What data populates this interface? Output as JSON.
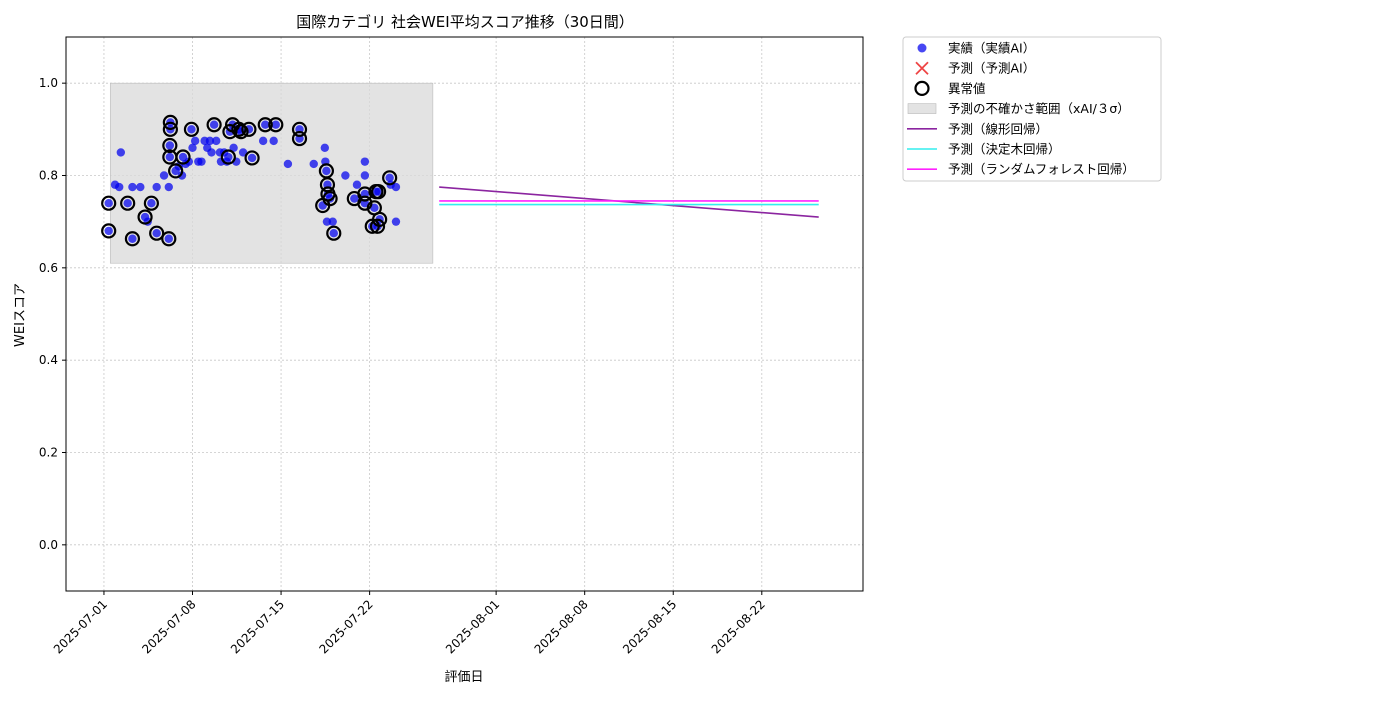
{
  "chart_data": {
    "type": "scatter",
    "title": "国際カテゴリ 社会WEI平均スコア推移（30日間）",
    "xlabel": "評価日",
    "ylabel": "WEIスコア",
    "xlim": [
      "2025-06-28",
      "2025-08-30"
    ],
    "ylim": [
      -0.1,
      1.1
    ],
    "x_ticks": [
      "2025-07-01",
      "2025-07-08",
      "2025-07-15",
      "2025-07-22",
      "2025-08-01",
      "2025-08-08",
      "2025-08-15",
      "2025-08-22"
    ],
    "y_ticks": [
      "0.0",
      "0.2",
      "0.4",
      "0.6",
      "0.8",
      "1.0"
    ],
    "grid": true,
    "legend_position": "outside-right-top",
    "colors": {
      "actual": "#0000ee",
      "predicted": "#ee4444",
      "anomaly": "#000000",
      "band": "#d9d9d9",
      "linear": "#8b25a0",
      "tree": "#33eeee",
      "forest": "#ff22ff"
    },
    "legend": [
      {
        "key": "actual",
        "label": "実績（実績AI）"
      },
      {
        "key": "predicted",
        "label": "予測（予測AI）"
      },
      {
        "key": "anomaly",
        "label": "異常値"
      },
      {
        "key": "band",
        "label": "予測の不確かさ範囲（xAI/３σ）"
      },
      {
        "key": "linear",
        "label": "予測（線形回帰）"
      },
      {
        "key": "tree",
        "label": "予測（決定木回帰）"
      },
      {
        "key": "forest",
        "label": "予測（ランダムフォレスト回帰）"
      }
    ],
    "uncertainty_band": {
      "x": [
        "2025-07-01 12:00",
        "2025-07-27 00:00"
      ],
      "y": [
        0.61,
        1.0
      ]
    },
    "actual_points": [
      [
        "2025-07-01 09:00",
        0.68
      ],
      [
        "2025-07-01 09:00",
        0.74
      ],
      [
        "2025-07-01 21:00",
        0.78
      ],
      [
        "2025-07-02 05:00",
        0.775
      ],
      [
        "2025-07-02 08:00",
        0.85
      ],
      [
        "2025-07-02 21:00",
        0.74
      ],
      [
        "2025-07-03 06:00",
        0.775
      ],
      [
        "2025-07-03 06:00",
        0.663
      ],
      [
        "2025-07-03 21:00",
        0.775
      ],
      [
        "2025-07-04 06:00",
        0.71
      ],
      [
        "2025-07-04 11:00",
        0.7
      ],
      [
        "2025-07-04 18:00",
        0.74
      ],
      [
        "2025-07-05 04:00",
        0.775
      ],
      [
        "2025-07-05 04:00",
        0.675
      ],
      [
        "2025-07-05 18:00",
        0.8
      ],
      [
        "2025-07-06 03:00",
        0.775
      ],
      [
        "2025-07-06 03:00",
        0.663
      ],
      [
        "2025-07-06 05:00",
        0.84
      ],
      [
        "2025-07-06 05:00",
        0.865
      ],
      [
        "2025-07-06 06:00",
        0.9
      ],
      [
        "2025-07-06 06:00",
        0.915
      ],
      [
        "2025-07-06 16:00",
        0.81
      ],
      [
        "2025-07-06 22:00",
        0.82
      ],
      [
        "2025-07-07 04:00",
        0.8
      ],
      [
        "2025-07-07 06:00",
        0.84
      ],
      [
        "2025-07-07 11:00",
        0.825
      ],
      [
        "2025-07-07 17:00",
        0.83
      ],
      [
        "2025-07-07 22:00",
        0.9
      ],
      [
        "2025-07-08 00:00",
        0.86
      ],
      [
        "2025-07-08 05:00",
        0.875
      ],
      [
        "2025-07-08 11:00",
        0.83
      ],
      [
        "2025-07-08 17:00",
        0.83
      ],
      [
        "2025-07-08 23:00",
        0.875
      ],
      [
        "2025-07-09 04:00",
        0.86
      ],
      [
        "2025-07-09 09:00",
        0.875
      ],
      [
        "2025-07-09 12:00",
        0.85
      ],
      [
        "2025-07-09 17:00",
        0.91
      ],
      [
        "2025-07-09 21:00",
        0.875
      ],
      [
        "2025-07-10 04:00",
        0.85
      ],
      [
        "2025-07-10 06:00",
        0.83
      ],
      [
        "2025-07-10 12:00",
        0.85
      ],
      [
        "2025-07-10 17:00",
        0.83
      ],
      [
        "2025-07-10 20:00",
        0.84
      ],
      [
        "2025-07-10 23:00",
        0.895
      ],
      [
        "2025-07-11 04:00",
        0.91
      ],
      [
        "2025-07-11 06:00",
        0.86
      ],
      [
        "2025-07-11 11:00",
        0.83
      ],
      [
        "2025-07-11 16:00",
        0.9
      ],
      [
        "2025-07-11 20:00",
        0.895
      ],
      [
        "2025-07-12 00:00",
        0.85
      ],
      [
        "2025-07-12 11:00",
        0.9
      ],
      [
        "2025-07-12 17:00",
        0.838
      ],
      [
        "2025-07-13 14:00",
        0.875
      ],
      [
        "2025-07-13 18:00",
        0.91
      ],
      [
        "2025-07-14 10:00",
        0.875
      ],
      [
        "2025-07-14 14:00",
        0.91
      ],
      [
        "2025-07-15 13:00",
        0.825
      ],
      [
        "2025-07-16 11:00",
        0.9
      ],
      [
        "2025-07-16 11:00",
        0.88
      ],
      [
        "2025-07-17 14:00",
        0.825
      ],
      [
        "2025-07-18 07:00",
        0.735
      ],
      [
        "2025-07-18 11:00",
        0.86
      ],
      [
        "2025-07-18 12:00",
        0.83
      ],
      [
        "2025-07-18 14:00",
        0.81
      ],
      [
        "2025-07-18 16:00",
        0.78
      ],
      [
        "2025-07-18 17:00",
        0.76
      ],
      [
        "2025-07-18 15:00",
        0.7
      ],
      [
        "2025-07-18 21:00",
        0.75
      ],
      [
        "2025-07-19 02:00",
        0.7
      ],
      [
        "2025-07-19 04:00",
        0.675
      ],
      [
        "2025-07-20 02:00",
        0.8
      ],
      [
        "2025-07-20 19:00",
        0.75
      ],
      [
        "2025-07-21 00:00",
        0.78
      ],
      [
        "2025-07-21 15:00",
        0.83
      ],
      [
        "2025-07-21 15:00",
        0.8
      ],
      [
        "2025-07-21 15:00",
        0.76
      ],
      [
        "2025-07-21 15:00",
        0.74
      ],
      [
        "2025-07-22 05:00",
        0.69
      ],
      [
        "2025-07-22 09:00",
        0.73
      ],
      [
        "2025-07-22 12:00",
        0.765
      ],
      [
        "2025-07-22 15:00",
        0.69
      ],
      [
        "2025-07-22 17:00",
        0.765
      ],
      [
        "2025-07-22 19:00",
        0.705
      ],
      [
        "2025-07-23 14:00",
        0.795
      ],
      [
        "2025-07-23 16:00",
        0.78
      ],
      [
        "2025-07-24 02:00",
        0.775
      ],
      [
        "2025-07-24 02:00",
        0.7
      ]
    ],
    "anomaly_points": [
      [
        "2025-07-01 09:00",
        0.68
      ],
      [
        "2025-07-01 09:00",
        0.74
      ],
      [
        "2025-07-02 21:00",
        0.74
      ],
      [
        "2025-07-03 06:00",
        0.663
      ],
      [
        "2025-07-04 06:00",
        0.71
      ],
      [
        "2025-07-04 18:00",
        0.74
      ],
      [
        "2025-07-05 04:00",
        0.675
      ],
      [
        "2025-07-06 03:00",
        0.663
      ],
      [
        "2025-07-06 05:00",
        0.84
      ],
      [
        "2025-07-06 05:00",
        0.865
      ],
      [
        "2025-07-06 06:00",
        0.9
      ],
      [
        "2025-07-06 06:00",
        0.915
      ],
      [
        "2025-07-06 16:00",
        0.81
      ],
      [
        "2025-07-07 06:00",
        0.84
      ],
      [
        "2025-07-07 22:00",
        0.9
      ],
      [
        "2025-07-09 17:00",
        0.91
      ],
      [
        "2025-07-10 20:00",
        0.84
      ],
      [
        "2025-07-10 23:00",
        0.895
      ],
      [
        "2025-07-11 04:00",
        0.91
      ],
      [
        "2025-07-11 16:00",
        0.9
      ],
      [
        "2025-07-11 20:00",
        0.895
      ],
      [
        "2025-07-12 11:00",
        0.9
      ],
      [
        "2025-07-12 17:00",
        0.838
      ],
      [
        "2025-07-13 18:00",
        0.91
      ],
      [
        "2025-07-14 14:00",
        0.91
      ],
      [
        "2025-07-16 11:00",
        0.9
      ],
      [
        "2025-07-16 11:00",
        0.88
      ],
      [
        "2025-07-18 07:00",
        0.735
      ],
      [
        "2025-07-18 14:00",
        0.81
      ],
      [
        "2025-07-18 16:00",
        0.78
      ],
      [
        "2025-07-18 17:00",
        0.76
      ],
      [
        "2025-07-18 21:00",
        0.75
      ],
      [
        "2025-07-19 04:00",
        0.675
      ],
      [
        "2025-07-20 19:00",
        0.75
      ],
      [
        "2025-07-21 15:00",
        0.76
      ],
      [
        "2025-07-21 15:00",
        0.74
      ],
      [
        "2025-07-22 05:00",
        0.69
      ],
      [
        "2025-07-22 09:00",
        0.73
      ],
      [
        "2025-07-22 12:00",
        0.765
      ],
      [
        "2025-07-22 15:00",
        0.69
      ],
      [
        "2025-07-22 17:00",
        0.765
      ],
      [
        "2025-07-22 19:00",
        0.705
      ],
      [
        "2025-07-23 14:00",
        0.795
      ]
    ],
    "forecast_lines": [
      {
        "key": "linear",
        "name": "予測（線形回帰）",
        "x": [
          "2025-07-27 12:00",
          "2025-08-26 12:00"
        ],
        "y": [
          0.775,
          0.71
        ]
      },
      {
        "key": "tree",
        "name": "予測（決定木回帰）",
        "x": [
          "2025-07-27 12:00",
          "2025-08-26 12:00"
        ],
        "y": [
          0.737,
          0.737
        ]
      },
      {
        "key": "forest",
        "name": "予測（ランダムフォレスト回帰）",
        "x": [
          "2025-07-27 12:00",
          "2025-08-26 12:00"
        ],
        "y": [
          0.745,
          0.745
        ]
      }
    ]
  }
}
